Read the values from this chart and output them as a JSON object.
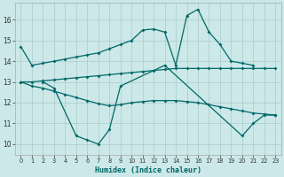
{
  "xlabel": "Humidex (Indice chaleur)",
  "bg_color": "#cce8e8",
  "grid_color": "#aacccc",
  "line_color": "#006868",
  "xlim": [
    -0.5,
    23.5
  ],
  "ylim": [
    9.5,
    16.8
  ],
  "yticks": [
    10,
    11,
    12,
    13,
    14,
    15,
    16
  ],
  "xticks": [
    0,
    1,
    2,
    3,
    4,
    5,
    6,
    7,
    8,
    9,
    10,
    11,
    12,
    13,
    14,
    15,
    16,
    17,
    18,
    19,
    20,
    21,
    22,
    23
  ],
  "s1x": [
    0,
    1,
    2,
    3,
    4,
    5,
    6,
    7,
    8,
    9,
    10,
    11,
    12,
    13,
    14,
    15,
    16,
    17,
    18,
    19,
    20,
    21
  ],
  "s1y": [
    14.7,
    13.8,
    13.9,
    14.0,
    14.1,
    14.2,
    14.3,
    14.4,
    14.6,
    14.8,
    15.0,
    15.5,
    15.55,
    15.4,
    13.8,
    16.2,
    16.5,
    15.4,
    14.8,
    14.0,
    13.9,
    13.8
  ],
  "s2x": [
    0,
    1,
    2,
    3,
    4,
    5,
    6,
    7,
    8,
    9,
    10,
    11,
    12,
    13,
    14,
    15,
    16,
    17,
    18,
    19,
    20,
    21,
    22,
    23
  ],
  "s2y": [
    13.0,
    13.0,
    13.05,
    13.1,
    13.15,
    13.2,
    13.25,
    13.3,
    13.35,
    13.4,
    13.45,
    13.5,
    13.55,
    13.6,
    13.65,
    13.65,
    13.65,
    13.65,
    13.65,
    13.65,
    13.65,
    13.65,
    13.65,
    13.65
  ],
  "s3x": [
    0,
    1,
    2,
    3,
    4,
    5,
    6,
    7,
    8,
    9,
    10,
    11,
    12,
    13,
    14,
    15,
    16,
    17,
    18,
    19,
    20,
    21,
    22,
    23
  ],
  "s3y": [
    13.0,
    12.8,
    12.7,
    12.55,
    12.4,
    12.25,
    12.1,
    11.95,
    11.85,
    11.9,
    12.0,
    12.05,
    12.1,
    12.1,
    12.1,
    12.05,
    12.0,
    11.9,
    11.8,
    11.7,
    11.6,
    11.5,
    11.45,
    11.4
  ],
  "s4x": [
    2,
    3,
    5,
    6,
    7,
    8,
    9,
    13,
    20,
    21,
    22,
    23
  ],
  "s4y": [
    13.0,
    12.7,
    10.4,
    10.2,
    10.0,
    10.7,
    12.8,
    13.8,
    10.4,
    11.0,
    11.4,
    11.4
  ]
}
